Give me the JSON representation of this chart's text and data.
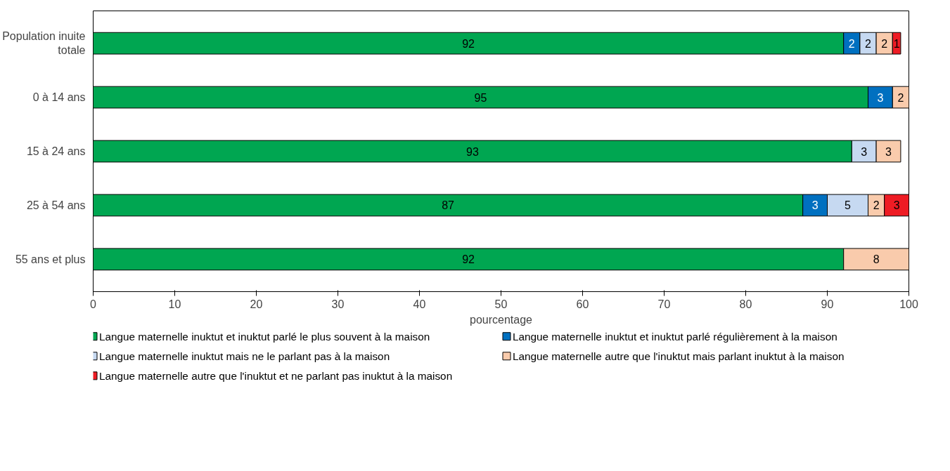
{
  "chart_data": {
    "type": "bar",
    "orientation": "horizontal",
    "stacked": true,
    "data_labels": true,
    "grid": false,
    "legend": "bottom",
    "xlabel": "pourcentage",
    "categories": [
      "Population inuite totale",
      "0 à 14 ans",
      "15 à 24 ans",
      "25 à 54 ans",
      "55 ans et plus"
    ],
    "xlim": [
      0,
      100
    ],
    "xticks": [
      0,
      10,
      20,
      30,
      40,
      50,
      60,
      70,
      80,
      90,
      100
    ],
    "series": [
      {
        "name": "Langue maternelle inuktut et inuktut parlé le plus souvent à la maison",
        "color": "#00a651",
        "values": [
          92,
          95,
          93,
          87,
          92
        ]
      },
      {
        "name": "Langue maternelle inuktut et inuktut parlé régulièrement à la maison",
        "color": "#0070c0",
        "values": [
          2,
          3,
          null,
          3,
          null
        ]
      },
      {
        "name": "Langue maternelle inuktut mais ne le parlant pas à la maison",
        "color": "#c6d9f1",
        "values": [
          2,
          null,
          3,
          5,
          null
        ]
      },
      {
        "name": "Langue maternelle autre que l'inuktut mais parlant inuktut à la maison",
        "color": "#f9cbac",
        "values": [
          2,
          2,
          3,
          2,
          8
        ]
      },
      {
        "name": "Langue maternelle autre que l'inuktut et ne parlant pas inuktut à la maison",
        "color": "#ee1c24",
        "values": [
          1,
          null,
          null,
          3,
          null
        ]
      }
    ]
  }
}
